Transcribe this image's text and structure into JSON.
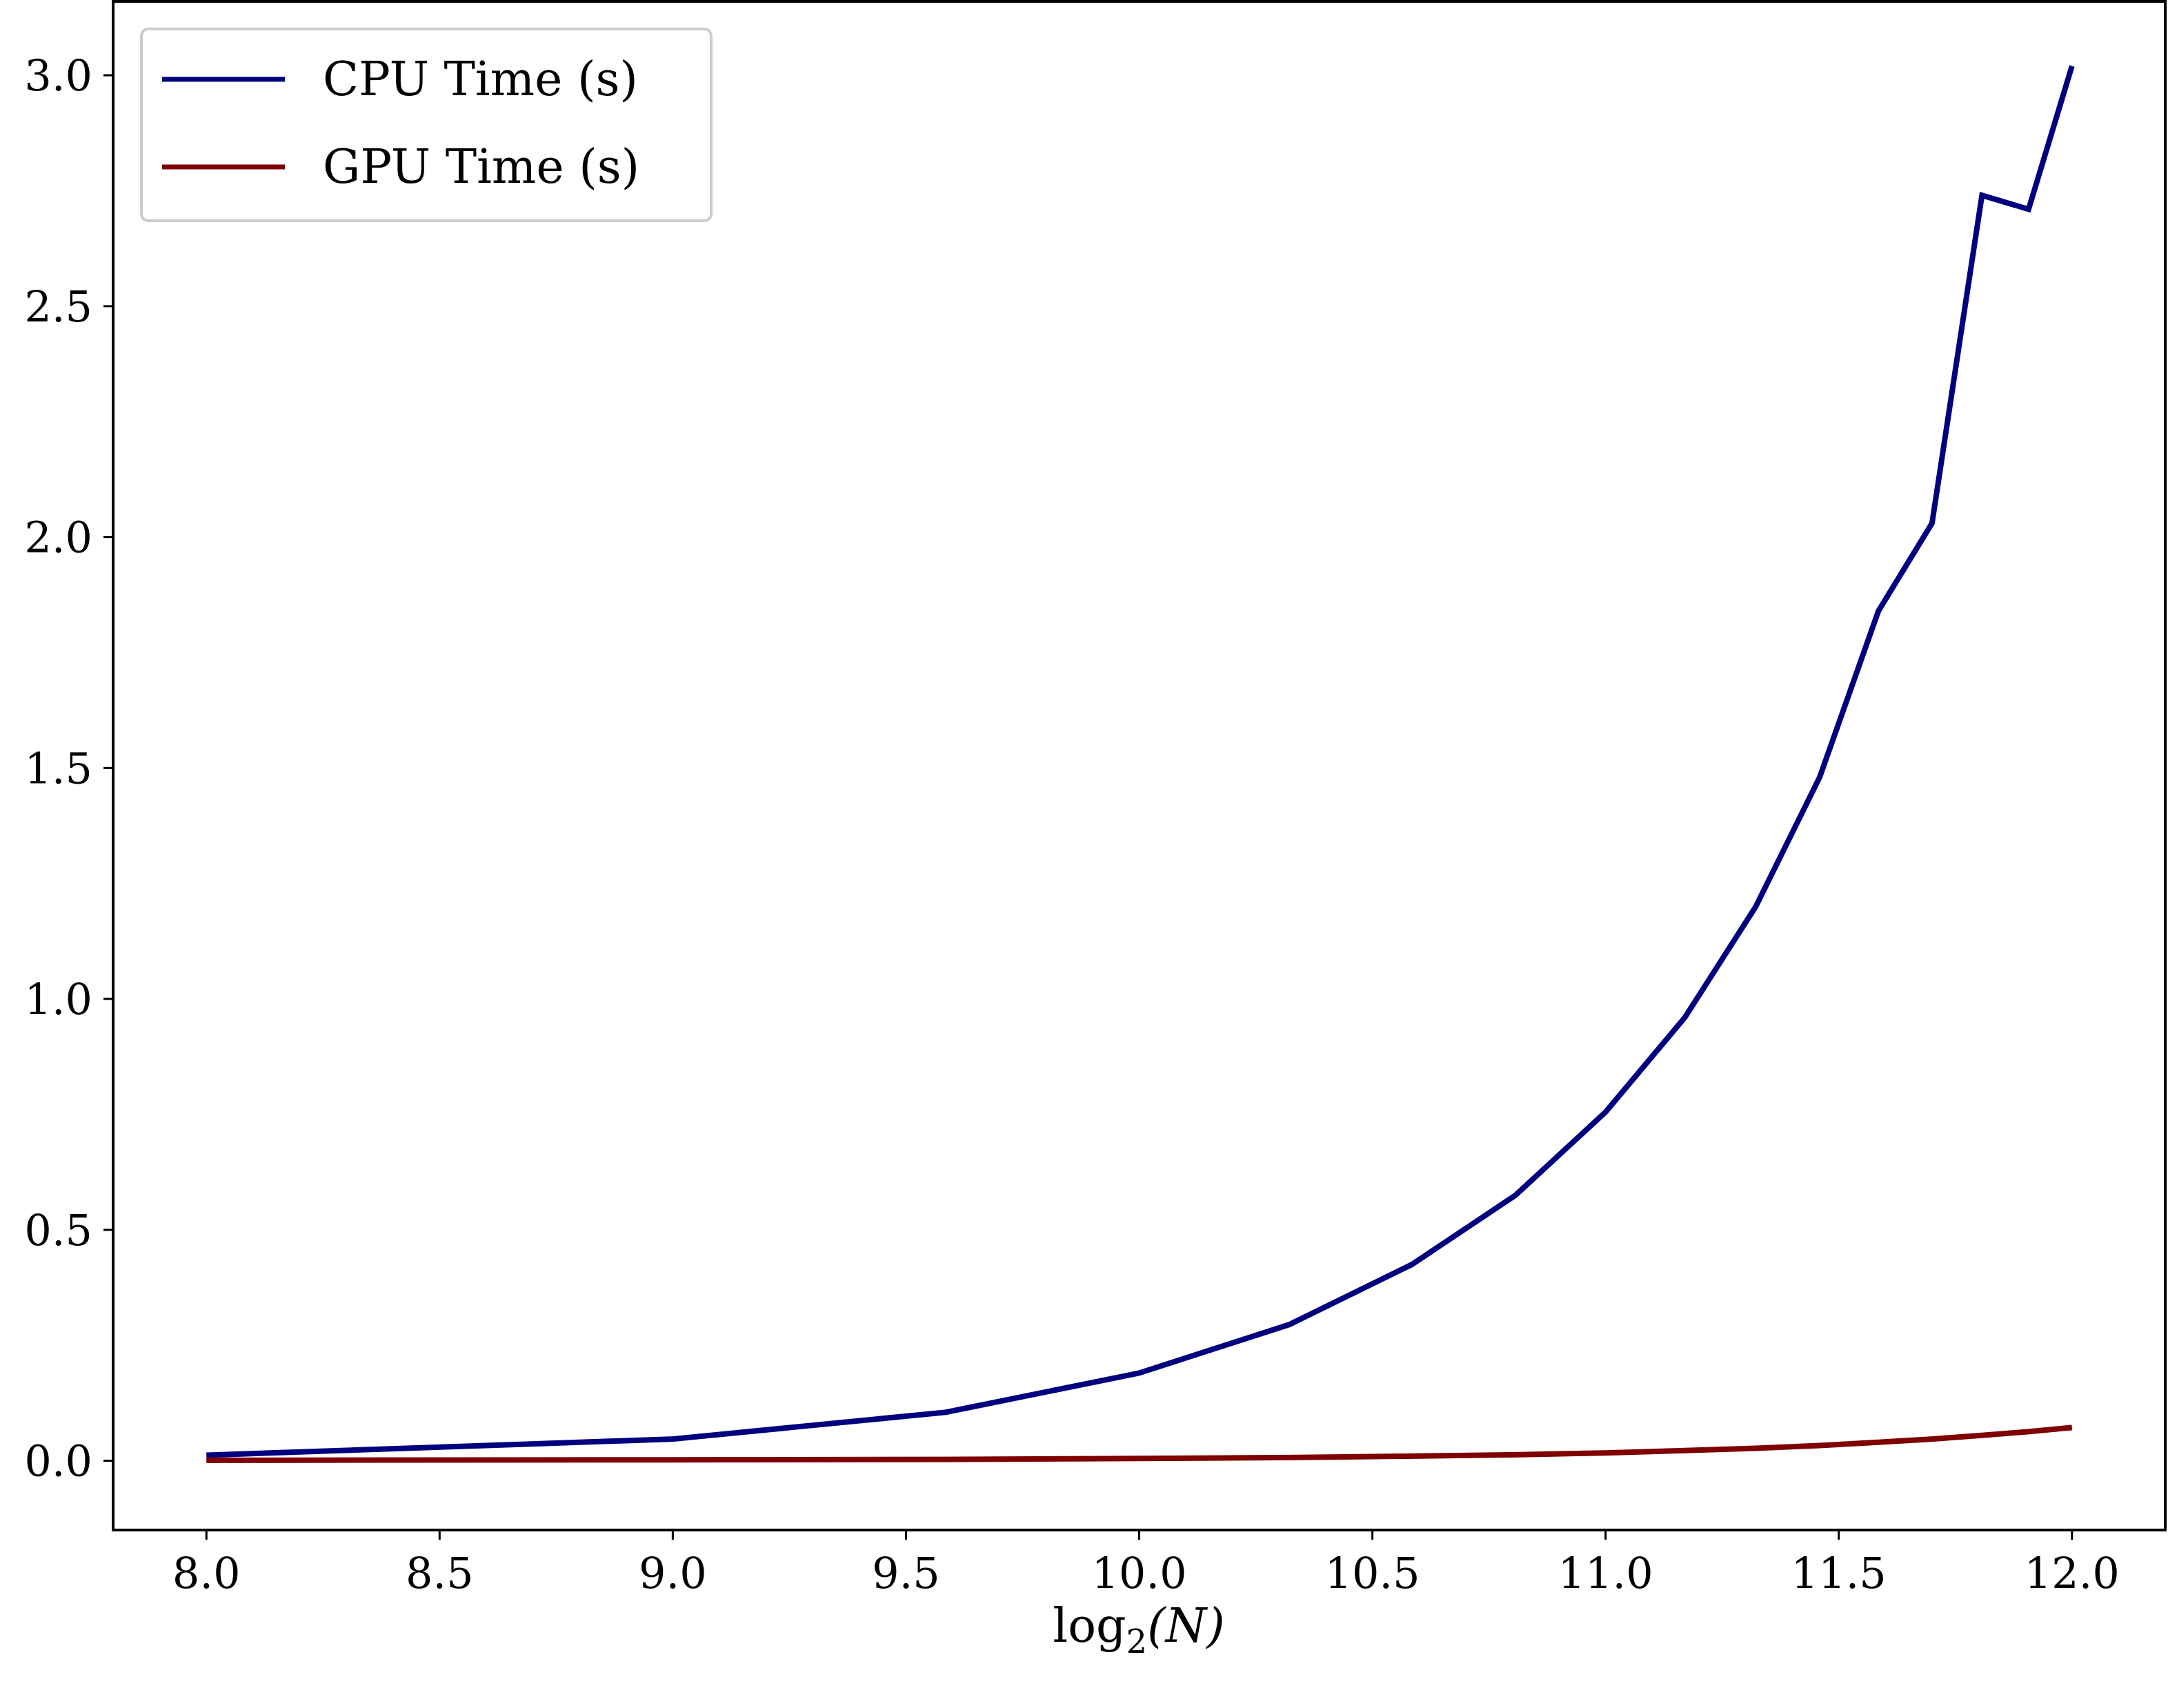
{
  "chart_data": {
    "type": "line",
    "title": "",
    "xlabel": "log2(N)",
    "xlabel_parts": {
      "pre": "log",
      "sub": "2",
      "post": "(N)"
    },
    "ylabel": "",
    "xlim": [
      7.8,
      12.2
    ],
    "ylim": [
      -0.15,
      3.16
    ],
    "xticks": [
      8.0,
      8.5,
      9.0,
      9.5,
      10.0,
      10.5,
      11.0,
      11.5,
      12.0
    ],
    "xtick_labels": [
      "8.0",
      "8.5",
      "9.0",
      "9.5",
      "10.0",
      "10.5",
      "11.0",
      "11.5",
      "12.0"
    ],
    "yticks": [
      0.0,
      0.5,
      1.0,
      1.5,
      2.0,
      2.5,
      3.0
    ],
    "ytick_labels": [
      "0.0",
      "0.5",
      "1.0",
      "1.5",
      "2.0",
      "2.5",
      "3.0"
    ],
    "grid": false,
    "legend_position": "top-left",
    "series": [
      {
        "name": "CPU Time (s)",
        "color": "#00007f",
        "x": [
          8.0,
          9.0,
          9.585,
          10.0,
          10.322,
          10.585,
          10.807,
          11.0,
          11.17,
          11.322,
          11.459,
          11.585,
          11.7,
          11.807,
          11.907,
          12.0
        ],
        "values": [
          0.012,
          0.047,
          0.105,
          0.19,
          0.295,
          0.425,
          0.575,
          0.755,
          0.96,
          1.2,
          1.48,
          1.84,
          2.03,
          2.74,
          2.71,
          3.02
        ]
      },
      {
        "name": "GPU Time (s)",
        "color": "#7f0000",
        "x": [
          8.0,
          9.0,
          9.585,
          10.0,
          10.322,
          10.585,
          10.807,
          11.0,
          11.17,
          11.322,
          11.459,
          11.585,
          11.7,
          11.807,
          11.907,
          12.0
        ],
        "values": [
          0.001,
          0.002,
          0.003,
          0.005,
          0.007,
          0.01,
          0.013,
          0.017,
          0.022,
          0.027,
          0.033,
          0.04,
          0.047,
          0.055,
          0.063,
          0.072
        ]
      }
    ]
  }
}
